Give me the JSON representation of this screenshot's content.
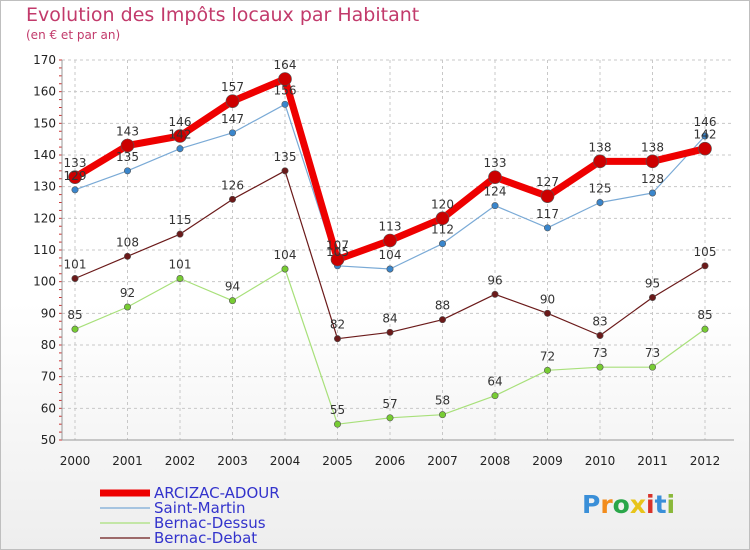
{
  "header": {
    "title": "Evolution des Impôts locaux par Habitant",
    "subtitle": "(en € et par an)"
  },
  "logo": {
    "text": "Proxiti"
  },
  "chart_data": {
    "type": "line",
    "title": "Evolution des Impôts locaux par Habitant",
    "subtitle": "(en € et par an)",
    "xlabel": "",
    "ylabel": "",
    "ylim": [
      50,
      170
    ],
    "yticks": [
      50,
      60,
      70,
      80,
      90,
      100,
      110,
      120,
      130,
      140,
      150,
      160,
      170
    ],
    "grid": true,
    "legend_position": "bottom-left",
    "x": [
      "2000",
      "2001",
      "2002",
      "2003",
      "2004",
      "2005",
      "2006",
      "2007",
      "2008",
      "2009",
      "2010",
      "2011",
      "2012"
    ],
    "series": [
      {
        "name": "Bernac-Debat",
        "color": "#6b1a1a",
        "point_color": "#6b1a1a",
        "values": [
          101,
          108,
          115,
          126,
          135,
          82,
          84,
          88,
          96,
          90,
          83,
          95,
          105
        ],
        "labels": [
          "101",
          "108",
          "115",
          "126",
          "135",
          "82",
          "84",
          "88",
          "96",
          "90",
          "83",
          "95",
          "105"
        ]
      },
      {
        "name": "Bernac-Dessus",
        "color": "#a8e07a",
        "point_color": "#77cc33",
        "values": [
          85,
          92,
          101,
          94,
          104,
          55,
          57,
          58,
          64,
          72,
          73,
          73,
          85
        ],
        "labels": [
          "85",
          "92",
          "101",
          "94",
          "104",
          "55",
          "57",
          "58",
          "64",
          "72",
          "73",
          "73",
          "85"
        ]
      },
      {
        "name": "Saint-Martin",
        "color": "#7aaad6",
        "point_color": "#3a86cc",
        "values": [
          129,
          135,
          142,
          147,
          156,
          105,
          104,
          112,
          124,
          117,
          125,
          128,
          146
        ],
        "labels": [
          "129",
          "135",
          "142",
          "147",
          "156",
          "105",
          "104",
          "112",
          "124",
          "117",
          "125",
          "128",
          "146"
        ]
      },
      {
        "name": "ARCIZAC-ADOUR",
        "color": "#ee0000",
        "point_color": "#cc0000",
        "values": [
          133,
          143,
          146,
          157,
          164,
          107,
          113,
          120,
          133,
          127,
          138,
          138,
          142
        ],
        "labels": [
          "133",
          "143",
          "146",
          "157",
          "164",
          "107",
          "113",
          "120",
          "133",
          "127",
          "138",
          "138",
          "142"
        ]
      }
    ],
    "legend": [
      "ARCIZAC-ADOUR",
      "Saint-Martin",
      "Bernac-Dessus",
      "Bernac-Debat"
    ]
  }
}
